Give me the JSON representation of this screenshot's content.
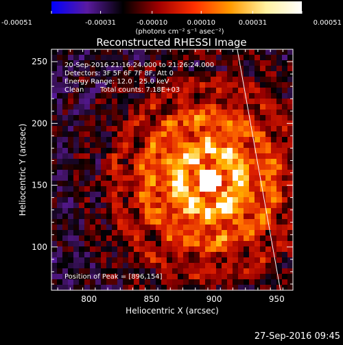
{
  "chart_data": {
    "type": "heatmap",
    "title": "Reconstructed RHESSI Image",
    "xlabel": "Heliocentric X (arcsec)",
    "ylabel": "Heliocentric Y (arcsec)",
    "xlim": [
      770,
      963
    ],
    "ylim": [
      65,
      260
    ],
    "x_ticks": [
      800,
      850,
      900,
      950
    ],
    "y_ticks": [
      100,
      150,
      200,
      250
    ],
    "colorbar": {
      "ticks": [
        "-0.00051",
        "-0.00031",
        "-0.00010",
        "0.00010",
        "0.00031",
        "0.00051"
      ],
      "tick_values": [
        -0.00051,
        -0.00031,
        -0.0001,
        0.0001,
        0.00031,
        0.00051
      ],
      "range": [
        -0.00051,
        0.00051
      ],
      "units_label": "(photons cm⁻² s⁻¹ asec⁻²)",
      "colors": [
        "#0000ff",
        "#5a1aa0",
        "#000000",
        "#a00000",
        "#ff3000",
        "#ff9a00",
        "#fff2a0",
        "#ffffff"
      ]
    },
    "annotations": {
      "time_range": "20-Sep-2016 21:16:24.000 to 21:26:24.000",
      "detectors": "Detectors: 3F 5F 6F 7F 8F, Att 0",
      "energy": "Energy Range: 12.0 - 25.0 keV",
      "method": "Clean",
      "counts": "Total counts: 7.18E+03",
      "peak": "Position of Peak = [896,154]"
    },
    "peak": {
      "x": 896,
      "y": 154
    },
    "limb_line": [
      [
        918,
        263
      ],
      [
        953,
        65
      ]
    ]
  },
  "footer_date": "27-Sep-2016 09:45"
}
